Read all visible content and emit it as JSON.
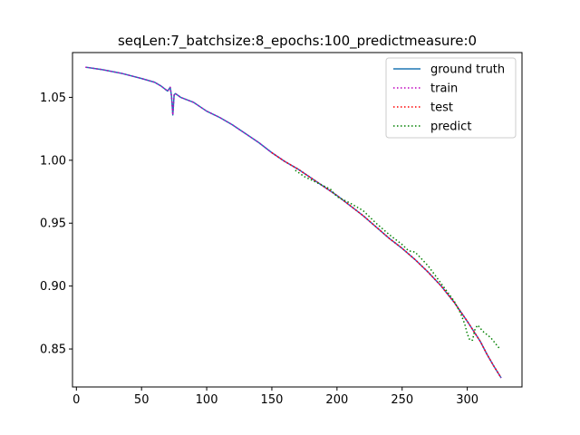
{
  "chart_data": {
    "type": "line",
    "title": "seqLen:7_batchsize:8_epochs:100_predictmeasure:0",
    "xlabel": "",
    "ylabel": "",
    "xlim": [
      -3,
      342
    ],
    "ylim": [
      0.8198,
      1.0856
    ],
    "x_ticks": [
      0,
      50,
      100,
      150,
      200,
      250,
      300
    ],
    "x_tick_labels": [
      "0",
      "50",
      "100",
      "150",
      "200",
      "250",
      "300"
    ],
    "y_ticks": [
      0.85,
      0.9,
      0.95,
      1.0,
      1.05
    ],
    "y_tick_labels": [
      "0.85",
      "0.90",
      "0.95",
      "1.00",
      "1.05"
    ],
    "grid": false,
    "legend": {
      "placement": "top-right"
    },
    "series": [
      {
        "name": "ground truth",
        "color": "#1f77b4",
        "style": "solid",
        "x": [
          7,
          20,
          35,
          50,
          60,
          65,
          70,
          72,
          73,
          74,
          75,
          76,
          80,
          90,
          100,
          110,
          120,
          130,
          140,
          150,
          160,
          170,
          180,
          190,
          200,
          210,
          220,
          230,
          240,
          250,
          260,
          270,
          280,
          290,
          300,
          305,
          310,
          315,
          320,
          326
        ],
        "y": [
          1.074,
          1.072,
          1.069,
          1.065,
          1.062,
          1.059,
          1.055,
          1.058,
          1.051,
          1.036,
          1.052,
          1.053,
          1.05,
          1.046,
          1.039,
          1.034,
          1.028,
          1.021,
          1.014,
          1.006,
          0.999,
          0.993,
          0.986,
          0.979,
          0.972,
          0.964,
          0.956,
          0.947,
          0.938,
          0.93,
          0.921,
          0.911,
          0.9,
          0.887,
          0.872,
          0.864,
          0.856,
          0.846,
          0.837,
          0.827
        ]
      },
      {
        "name": "train",
        "color": "#bf00bf",
        "style": "dotted",
        "x": [
          7,
          20,
          35,
          50,
          60,
          65,
          70,
          72,
          73,
          74,
          75,
          76,
          80,
          90,
          100,
          110,
          120,
          130,
          140,
          150,
          160,
          170,
          180,
          190,
          200,
          210,
          220,
          230,
          240,
          250,
          260,
          270,
          280,
          290,
          300,
          305,
          310,
          315,
          320,
          326
        ],
        "y": [
          1.074,
          1.072,
          1.069,
          1.065,
          1.062,
          1.059,
          1.055,
          1.058,
          1.051,
          1.036,
          1.052,
          1.053,
          1.05,
          1.046,
          1.039,
          1.034,
          1.028,
          1.021,
          1.014,
          1.006,
          0.999,
          0.993,
          0.986,
          0.979,
          0.972,
          0.964,
          0.956,
          0.947,
          0.938,
          0.93,
          0.921,
          0.911,
          0.9,
          0.887,
          0.872,
          0.864,
          0.856,
          0.846,
          0.837,
          0.827
        ]
      },
      {
        "name": "test",
        "color": "#ff0000",
        "style": "dotted",
        "x": [
          150,
          160,
          170,
          180,
          190,
          200,
          210,
          220,
          230,
          240,
          250,
          260,
          270,
          280,
          290,
          300,
          305,
          310,
          315,
          320,
          326
        ],
        "y": [
          1.006,
          0.999,
          0.993,
          0.986,
          0.979,
          0.972,
          0.964,
          0.956,
          0.947,
          0.938,
          0.93,
          0.921,
          0.911,
          0.9,
          0.887,
          0.872,
          0.864,
          0.856,
          0.846,
          0.837,
          0.827
        ]
      },
      {
        "name": "predict",
        "color": "#008000",
        "style": "dotted",
        "x": [
          168,
          175,
          185,
          195,
          200,
          210,
          220,
          225,
          230,
          240,
          250,
          255,
          260,
          270,
          280,
          290,
          295,
          298,
          300,
          302,
          304,
          306,
          308,
          312,
          318,
          325
        ],
        "y": [
          0.992,
          0.987,
          0.982,
          0.977,
          0.971,
          0.966,
          0.96,
          0.955,
          0.95,
          0.941,
          0.933,
          0.928,
          0.927,
          0.916,
          0.902,
          0.888,
          0.878,
          0.87,
          0.862,
          0.857,
          0.857,
          0.866,
          0.869,
          0.864,
          0.859,
          0.85
        ]
      }
    ]
  }
}
